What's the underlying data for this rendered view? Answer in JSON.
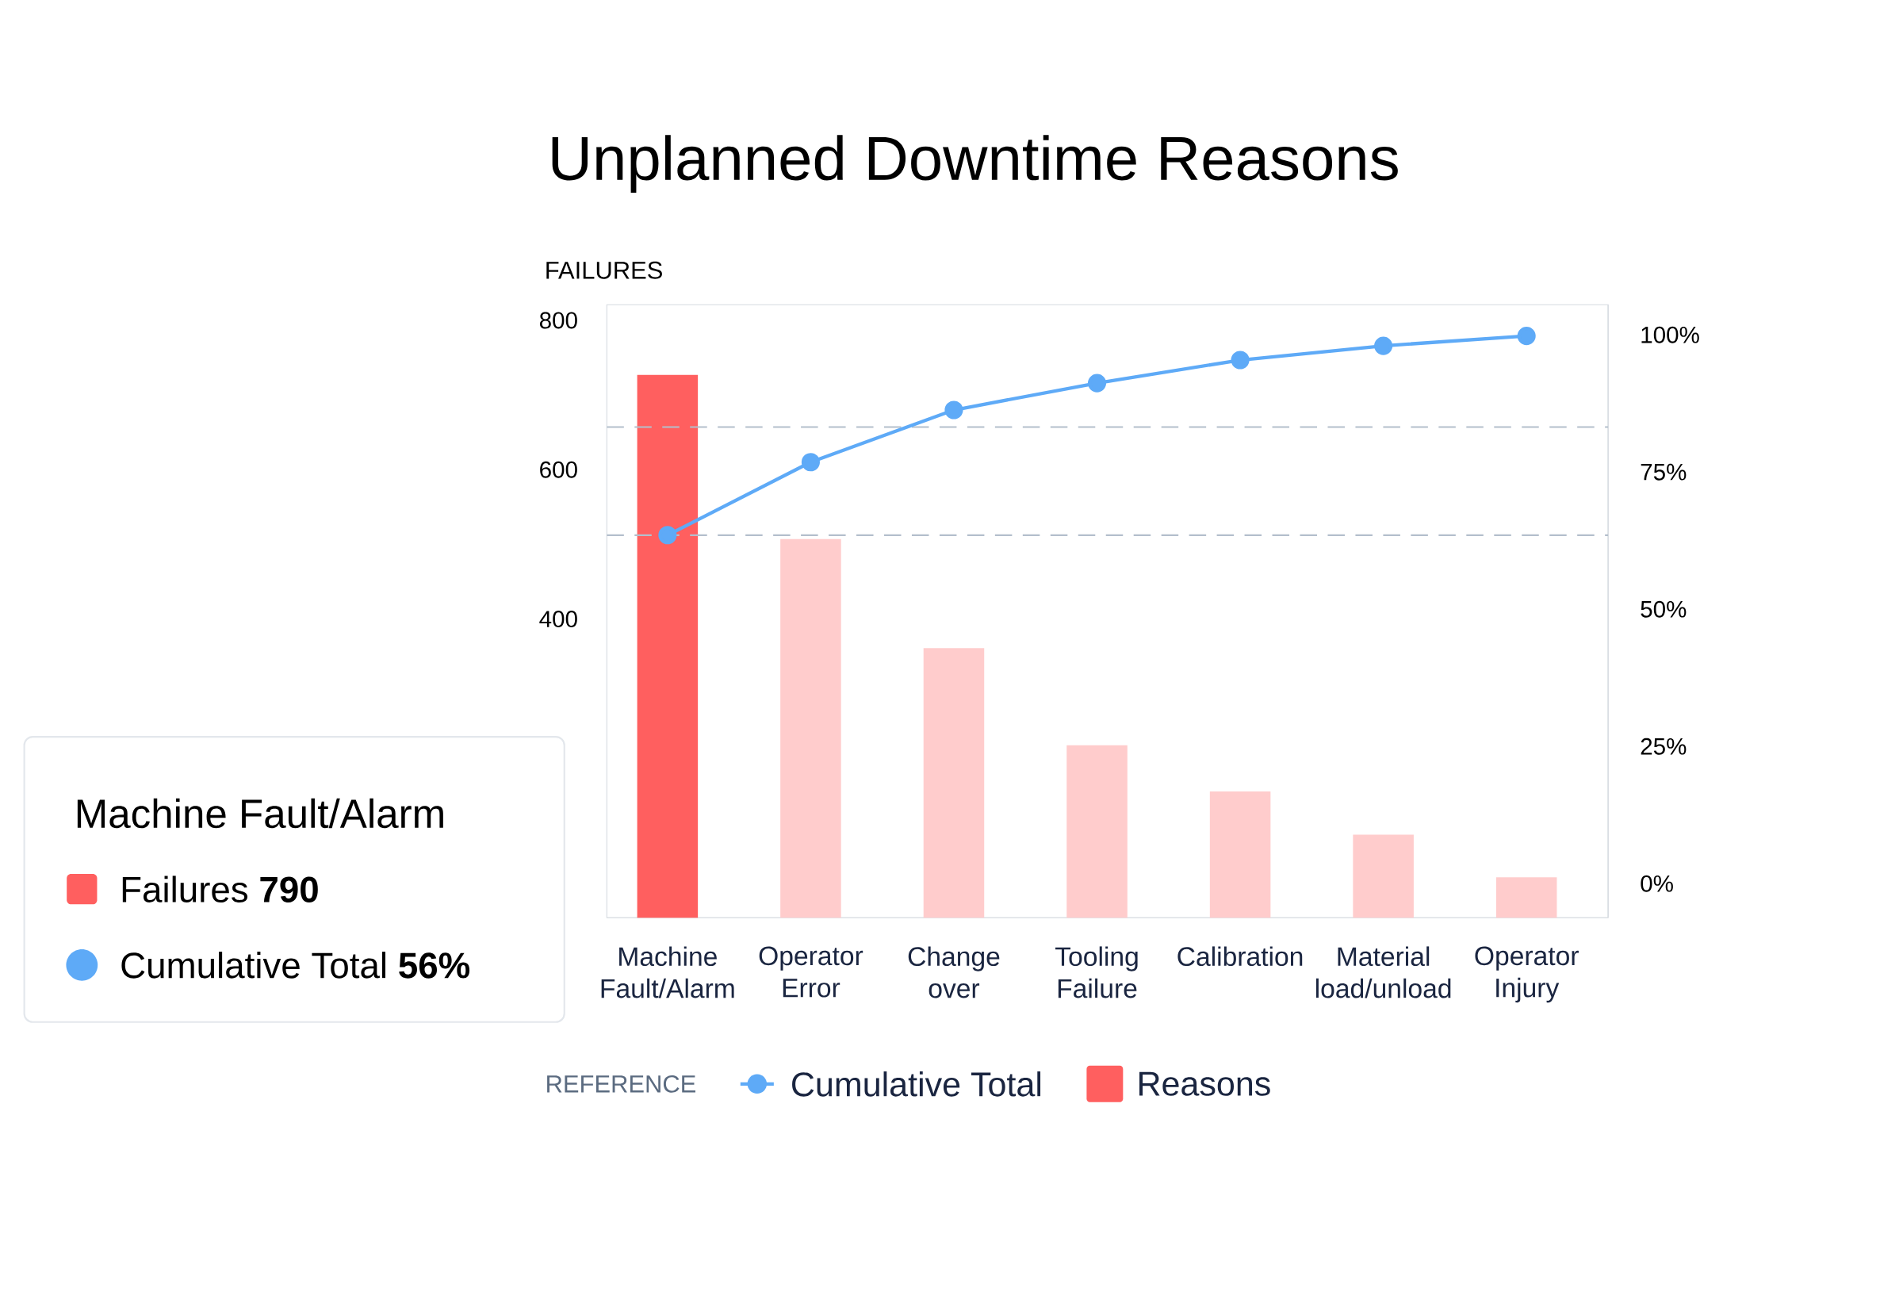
{
  "chart_data": {
    "type": "bar",
    "title": "Unplanned Downtime Reasons",
    "ylabel": "FAILURES",
    "legend_title": "REFERENCE",
    "categories": [
      "Machine Fault/Alarm",
      "Operator Error",
      "Change over",
      "Tooling Failure",
      "Calibration",
      "Material load/unload",
      "Operator Injury"
    ],
    "series": [
      {
        "name": "Cumulative Total",
        "type": "line",
        "axis": "y2",
        "color": "#5eaaf7",
        "values": [
          63.5,
          76.8,
          86.3,
          91.2,
          95.4,
          98.0,
          99.8
        ]
      },
      {
        "name": "Reasons",
        "colors": [
          "#ff5f5f",
          "#ffcccc",
          "#ffcccc",
          "#ffcccc",
          "#ffcccc",
          "#ffcccc",
          "#ffcccc"
        ],
        "values": [
          727,
          507,
          361,
          231,
          169,
          111,
          54
        ]
      }
    ],
    "ylim": [
      0,
      821
    ],
    "yticks": [
      400,
      600,
      800
    ],
    "y2lim": [
      -6.2,
      105.5
    ],
    "y2ticks": [
      {
        "value": 0,
        "label": "0%"
      },
      {
        "value": 25,
        "label": "25%"
      },
      {
        "value": 50,
        "label": "50%"
      },
      {
        "value": 75,
        "label": "75%"
      },
      {
        "value": 100,
        "label": "100%"
      }
    ],
    "ref_lines": [
      {
        "axis": "y2",
        "value": 83.2,
        "color": "#b4bfcc",
        "line_style": "dashed"
      },
      {
        "axis": "y2",
        "value": 63.5,
        "color": "#b4bfcc",
        "line_style": "dashed"
      }
    ],
    "marker": "circle",
    "legend": "bottom",
    "annotations": [
      "Machine Fault/Alarm",
      "Failures **790**",
      "Cumulative Total **56%**"
    ]
  }
}
